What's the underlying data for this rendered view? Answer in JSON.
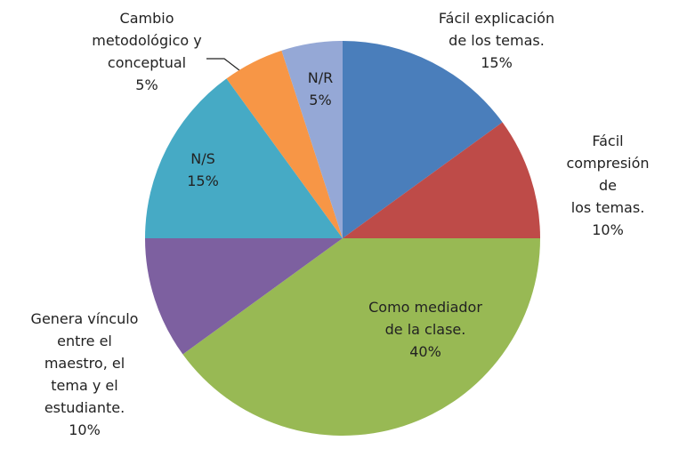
{
  "chart_data": {
    "type": "pie",
    "categories": [
      "Fácil explicación\nde los temas.",
      "Fácil\ncompresión de\nlos temas.",
      "Como mediador\nde la clase.",
      "Genera vínculo\nentre el\nmaestro, el\ntema y el\nestudiante.",
      "N/S",
      "Cambio\nmetodológico y\nconceptual",
      "N/R"
    ],
    "values": [
      15,
      10,
      40,
      10,
      15,
      5,
      5
    ],
    "value_labels": [
      "15%",
      "10%",
      "40%",
      "10%",
      "15%",
      "5%",
      "5%"
    ],
    "colors": [
      "#4a7ebb",
      "#be4b48",
      "#98b954",
      "#7d60a0",
      "#46aac5",
      "#f79646",
      "#95a8d6"
    ]
  }
}
